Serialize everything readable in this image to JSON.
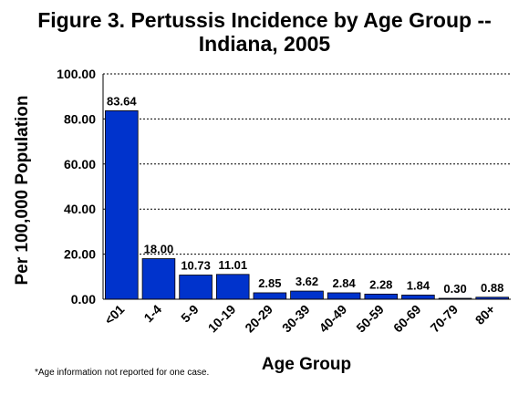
{
  "chart_data": {
    "type": "bar",
    "title_lines": [
      "Figure 3. Pertussis Incidence by Age Group --",
      "Indiana, 2005"
    ],
    "xlabel": "Age Group",
    "ylabel": "Per 100,000 Population",
    "categories": [
      "<01",
      "1-4",
      "5-9",
      "10-19",
      "20-29",
      "30-39",
      "40-49",
      "50-59",
      "60-69",
      "70-79",
      "80+"
    ],
    "values": [
      83.64,
      18.0,
      10.73,
      11.01,
      2.85,
      3.62,
      2.84,
      2.28,
      1.84,
      0.3,
      0.88
    ],
    "value_labels": [
      "83.64",
      "18.00",
      "10.73",
      "11.01",
      "2.85",
      "3.62",
      "2.84",
      "2.28",
      "1.84",
      "0.30",
      "0.88"
    ],
    "ylim": [
      0,
      100
    ],
    "yticks": [
      0,
      20,
      40,
      60,
      80,
      100
    ],
    "ytick_labels": [
      "0.00",
      "20.00",
      "40.00",
      "60.00",
      "80.00",
      "100.00"
    ],
    "grid": true,
    "bar_color": "#0033cc",
    "footnote": "*Age information not reported for one case."
  }
}
